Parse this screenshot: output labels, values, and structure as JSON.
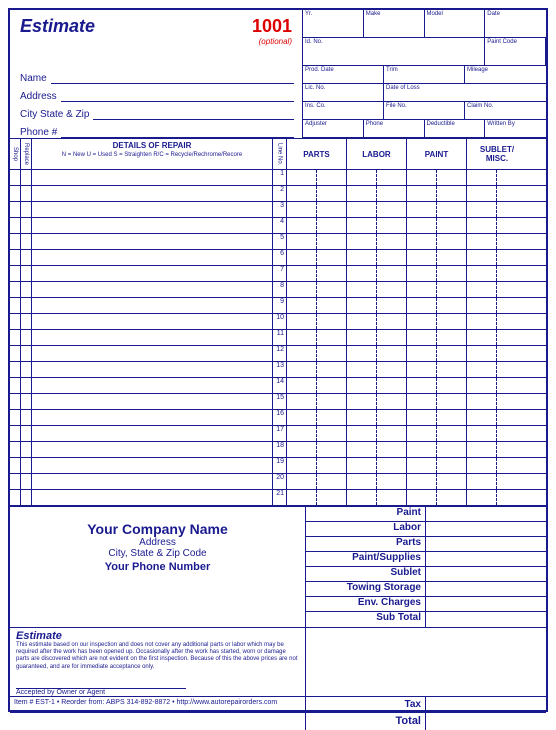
{
  "header": {
    "title": "Estimate",
    "form_number": "1001",
    "optional_label": "(optional)"
  },
  "vehicle_fields": {
    "yr": "Yr.",
    "make": "Make",
    "model": "Model",
    "date": "Date",
    "id_no": "Id. No.",
    "paint_code": "Paint Code",
    "prod_date": "Prod. Date",
    "trim": "Trim",
    "mileage": "Mileage",
    "lic_no": "Lic. No.",
    "date_of_loss": "Date of Loss",
    "ins_co": "Ins. Co.",
    "file_no": "File No.",
    "claim_no": "Claim No.",
    "adjuster": "Adjuster",
    "phone": "Phone",
    "deductible": "Deductible",
    "written_by": "Written By"
  },
  "customer": {
    "name": "Name",
    "address": "Address",
    "csz": "City State & Zip",
    "phone": "Phone #"
  },
  "details": {
    "shop": "Shop",
    "replace": "Replace",
    "header": "DETAILS OF REPAIR",
    "legend": "N = New   U = Used   S = Straighten   R/C = Recycle/Rechrome/Recore",
    "line_no": "Line No.",
    "cols": {
      "parts": "PARTS",
      "labor": "LABOR",
      "paint": "PAINT",
      "sublet": "SUBLET/\nMISC."
    },
    "row_count": 21
  },
  "company": {
    "name": "Your Company Name",
    "address": "Address",
    "csz": "City, State & Zip Code",
    "phone": "Your Phone Number"
  },
  "totals": {
    "paint": "Paint",
    "labor": "Labor",
    "parts": "Parts",
    "paint_supplies": "Paint/Supplies",
    "sublet": "Sublet",
    "towing_storage": "Towing Storage",
    "env_charges": "Env. Charges",
    "sub_total": "Sub Total",
    "tax": "Tax",
    "total": "Total"
  },
  "disclaimer": {
    "title": "Estimate",
    "text": "This estimate based on our inspection and does not cover any additional parts or labor which may be required after the work has been opened up. Occasionally after the work has started, worn or damage parts are discovered which are not evident on the first inspection. Because of this the above prices are not guaranteed, and are for immediate acceptance only.",
    "accepted": "Accepted by Owner or Agent"
  },
  "footer": {
    "item": "Item # EST-1",
    "reorder": "• Reorder from: ABPS 314-892-8872 • http://www.autorepairorders.com"
  }
}
